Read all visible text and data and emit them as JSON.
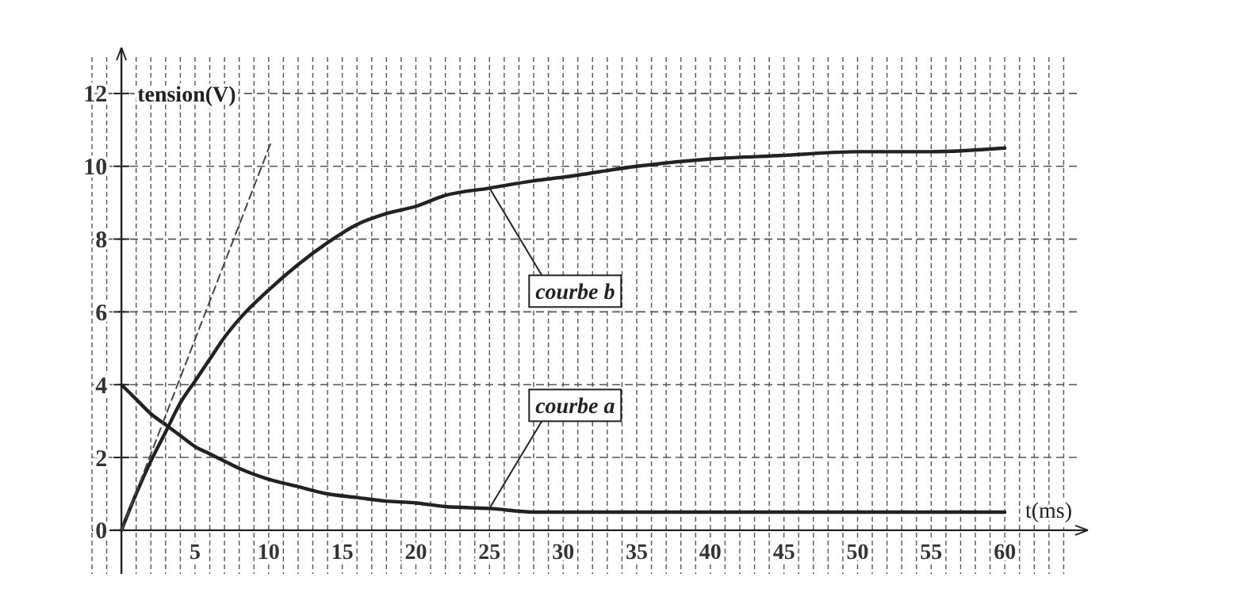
{
  "chart_data": {
    "type": "line",
    "xlabel": "t(ms)",
    "ylabel": "tension(V)",
    "xlim": [
      -2,
      65
    ],
    "ylim": [
      -1.2,
      13
    ],
    "xticks": [
      {
        "value": -2,
        "label": null
      },
      {
        "value": -1,
        "label": null
      },
      {
        "value": 1,
        "label": null
      },
      {
        "value": 2,
        "label": null
      },
      {
        "value": 3,
        "label": null
      },
      {
        "value": 4,
        "label": null
      },
      5,
      {
        "value": 6,
        "label": null
      },
      {
        "value": 7,
        "label": null
      },
      {
        "value": 8,
        "label": null
      },
      {
        "value": 9,
        "label": null
      },
      10,
      {
        "value": 11,
        "label": null
      },
      {
        "value": 12,
        "label": null
      },
      {
        "value": 13,
        "label": null
      },
      {
        "value": 14,
        "label": null
      },
      15,
      {
        "value": 16,
        "label": null
      },
      {
        "value": 17,
        "label": null
      },
      {
        "value": 18,
        "label": null
      },
      {
        "value": 19,
        "label": null
      },
      20,
      {
        "value": 21,
        "label": null
      },
      {
        "value": 22,
        "label": null
      },
      {
        "value": 23,
        "label": null
      },
      {
        "value": 24,
        "label": null
      },
      25,
      {
        "value": 26,
        "label": null
      },
      {
        "value": 27,
        "label": null
      },
      {
        "value": 28,
        "label": null
      },
      {
        "value": 29,
        "label": null
      },
      30,
      {
        "value": 31,
        "label": null
      },
      {
        "value": 32,
        "label": null
      },
      {
        "value": 33,
        "label": null
      },
      {
        "value": 34,
        "label": null
      },
      35,
      {
        "value": 36,
        "label": null
      },
      {
        "value": 37,
        "label": null
      },
      {
        "value": 38,
        "label": null
      },
      {
        "value": 39,
        "label": null
      },
      40,
      {
        "value": 41,
        "label": null
      },
      {
        "value": 42,
        "label": null
      },
      {
        "value": 43,
        "label": null
      },
      {
        "value": 44,
        "label": null
      },
      45,
      {
        "value": 46,
        "label": null
      },
      {
        "value": 47,
        "label": null
      },
      {
        "value": 48,
        "label": null
      },
      {
        "value": 49,
        "label": null
      },
      50,
      {
        "value": 51,
        "label": null
      },
      {
        "value": 52,
        "label": null
      },
      {
        "value": 53,
        "label": null
      },
      {
        "value": 54,
        "label": null
      },
      55,
      {
        "value": 56,
        "label": null
      },
      {
        "value": 57,
        "label": null
      },
      {
        "value": 58,
        "label": null
      },
      {
        "value": 59,
        "label": null
      },
      60,
      {
        "value": 61,
        "label": null
      },
      {
        "value": 62,
        "label": null
      },
      {
        "value": 63,
        "label": null
      },
      {
        "value": 64,
        "label": null
      }
    ],
    "yticks": [
      0,
      2,
      4,
      6,
      8,
      10,
      12
    ],
    "grid": true,
    "marker": "none",
    "line_style": "solid",
    "series": [
      {
        "name": "courbe b",
        "color": "#222222",
        "x": [
          0,
          1,
          2,
          3,
          4,
          5,
          6,
          7,
          8,
          10,
          12,
          14,
          16,
          18,
          20,
          22,
          25,
          28,
          30,
          35,
          40,
          45,
          50,
          55,
          60
        ],
        "values": [
          0,
          1.0,
          1.9,
          2.7,
          3.5,
          4.1,
          4.7,
          5.3,
          5.8,
          6.6,
          7.3,
          7.9,
          8.4,
          8.7,
          8.9,
          9.2,
          9.4,
          9.6,
          9.7,
          10.0,
          10.2,
          10.3,
          10.4,
          10.4,
          10.5
        ]
      },
      {
        "name": "courbe a",
        "color": "#222222",
        "x": [
          0,
          1,
          2,
          3,
          4,
          5,
          6,
          7,
          8,
          10,
          12,
          14,
          16,
          18,
          20,
          22,
          25,
          28,
          30,
          35,
          40,
          45,
          50,
          55,
          60
        ],
        "values": [
          4,
          3.6,
          3.2,
          2.9,
          2.6,
          2.3,
          2.1,
          1.9,
          1.7,
          1.4,
          1.2,
          1.0,
          0.9,
          0.8,
          0.75,
          0.65,
          0.6,
          0.5,
          0.5,
          0.5,
          0.5,
          0.5,
          0.5,
          0.5,
          0.5
        ]
      },
      {
        "color": "#444444",
        "line_style": "dashed",
        "x": [
          0,
          10.2
        ],
        "values": [
          0,
          10.7
        ]
      }
    ]
  }
}
